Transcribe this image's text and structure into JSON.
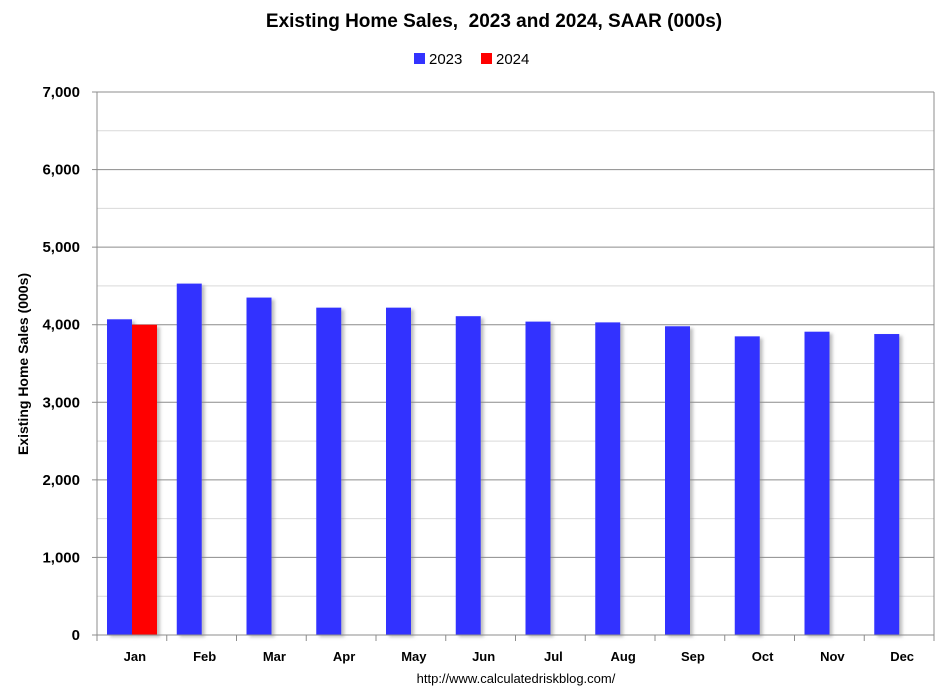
{
  "chart_data": {
    "type": "bar",
    "title": "Existing Home Sales,  2023 and 2024, SAAR (000s)",
    "xlabel": "",
    "ylabel": "Existing Home Sales (000s)",
    "ylim": [
      0,
      7000
    ],
    "yticks": [
      0,
      1000,
      2000,
      3000,
      4000,
      5000,
      6000,
      7000
    ],
    "ytick_labels": [
      "0",
      "1,000",
      "2,000",
      "3,000",
      "4,000",
      "5,000",
      "6,000",
      "7,000"
    ],
    "categories": [
      "Jan",
      "Feb",
      "Mar",
      "Apr",
      "May",
      "Jun",
      "Jul",
      "Aug",
      "Sep",
      "Oct",
      "Nov",
      "Dec"
    ],
    "series": [
      {
        "name": "2023",
        "color": "#3333ff",
        "values": [
          4070,
          4530,
          4350,
          4220,
          4220,
          4110,
          4040,
          4030,
          3980,
          3850,
          3910,
          3880
        ]
      },
      {
        "name": "2024",
        "color": "#ff0000",
        "values": [
          4000,
          null,
          null,
          null,
          null,
          null,
          null,
          null,
          null,
          null,
          null,
          null
        ]
      }
    ],
    "grid": true,
    "legend_position": "top-center",
    "source": "http://www.calculatedriskblog.com/"
  }
}
